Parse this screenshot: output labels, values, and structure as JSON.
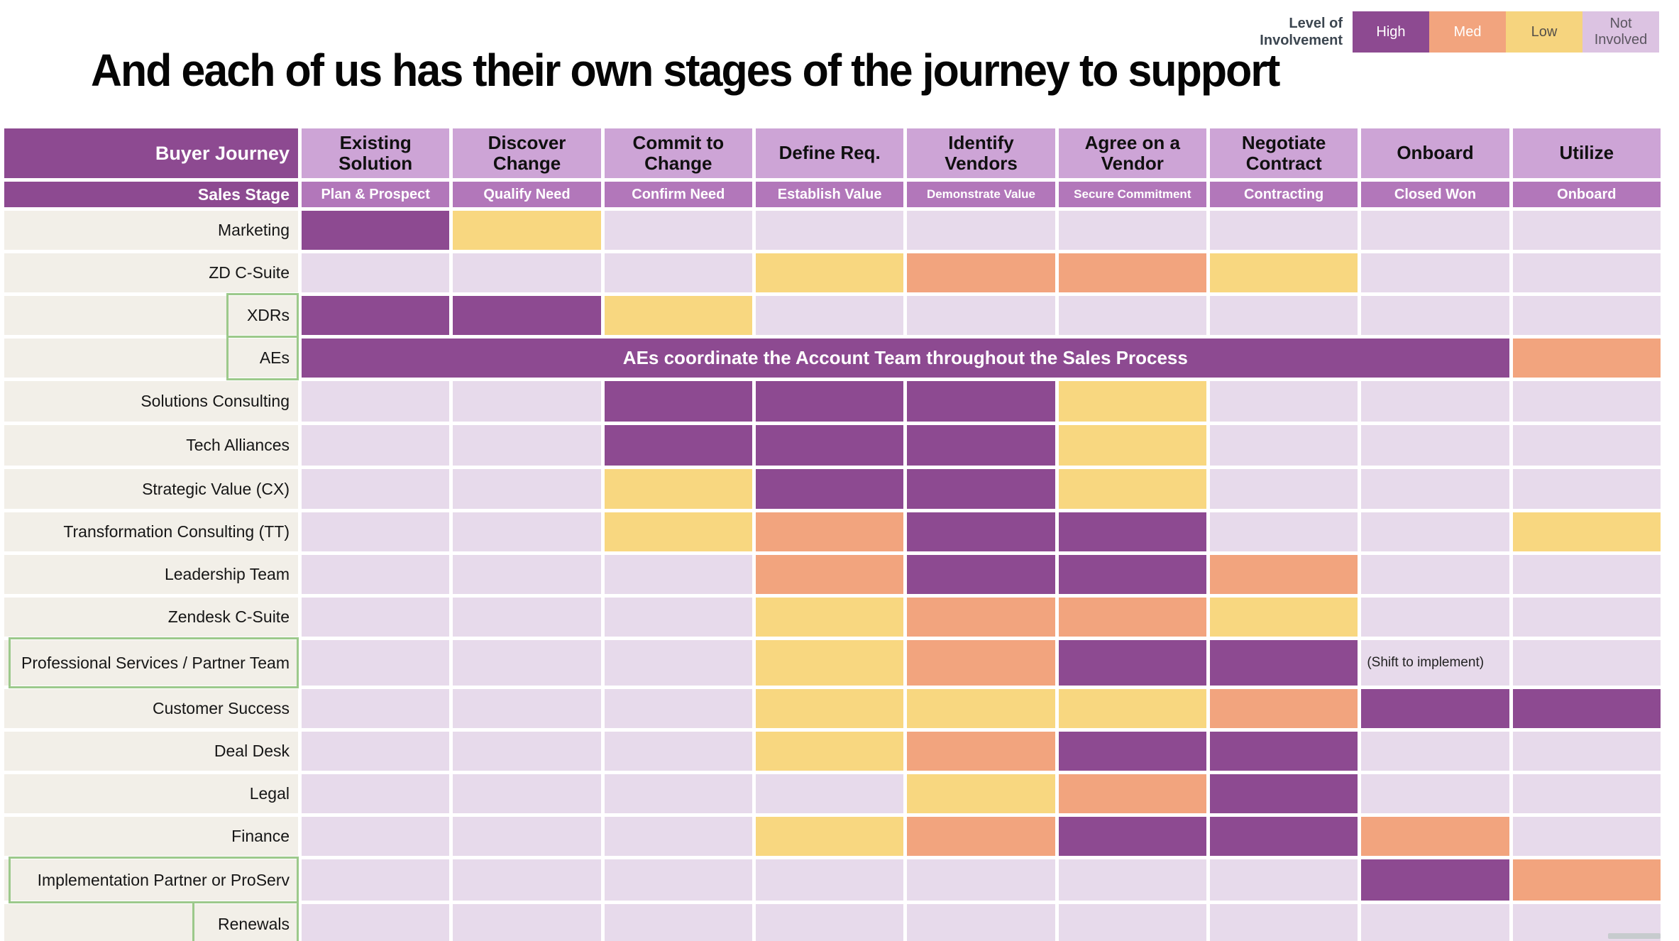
{
  "chart_data": {
    "type": "heatmap",
    "title": "And each of us has their own stages of the journey to support",
    "legend_title": "Level of Involvement",
    "legend_position": "top-right",
    "legend": [
      {
        "level": "High",
        "label": "High",
        "color": "#8d4a91",
        "text_color": "#ffffff"
      },
      {
        "level": "Med",
        "label": "Med",
        "color": "#f2a47e",
        "text_color": "#ffffff"
      },
      {
        "level": "Low",
        "label": "Low",
        "color": "#f6d47e",
        "text_color": "#55504a"
      },
      {
        "level": "Not Involved",
        "label": "Not Involved",
        "color": "#dcc3e2",
        "text_color": "#5b5560"
      }
    ],
    "corner": {
      "journey": "Buyer Journey",
      "stage": "Sales Stage"
    },
    "columns_journey": [
      "Existing Solution",
      "Discover Change",
      "Commit to Change",
      "Define Req.",
      "Identify Vendors",
      "Agree on a Vendor",
      "Negotiate Contract",
      "Onboard",
      "Utilize"
    ],
    "columns_sales_stage": [
      "Plan & Prospect",
      "Qualify Need",
      "Confirm Need",
      "Establish Value",
      "Demonstrate Value",
      "Secure Commitment",
      "Contracting",
      "Closed Won",
      "Onboard"
    ],
    "levels_key": {
      "H": "High",
      "M": "Med",
      "L": "Low",
      "N": "Not Involved"
    },
    "rows": [
      {
        "team": "Marketing",
        "cells": [
          "H",
          "L",
          "N",
          "N",
          "N",
          "N",
          "N",
          "N",
          "N"
        ]
      },
      {
        "team": "ZD C-Suite",
        "cells": [
          "N",
          "N",
          "N",
          "L",
          "M",
          "M",
          "L",
          "N",
          "N"
        ]
      },
      {
        "team": "XDRs",
        "highlight": "label",
        "cells": [
          "H",
          "H",
          "L",
          "N",
          "N",
          "N",
          "N",
          "N",
          "N"
        ]
      },
      {
        "team": "AEs",
        "highlight": "label",
        "merged": {
          "span": 8,
          "level": "H",
          "text": "AEs coordinate the Account Team throughout the Sales Process"
        },
        "tail_cells": [
          "M"
        ]
      },
      {
        "team": "Solutions Consulting",
        "cells": [
          "N",
          "N",
          "H",
          "H",
          "H",
          "L",
          "N",
          "N",
          "N"
        ]
      },
      {
        "team": "Tech Alliances",
        "cells": [
          "N",
          "N",
          "H",
          "H",
          "H",
          "L",
          "N",
          "N",
          "N"
        ]
      },
      {
        "team": "Strategic Value (CX)",
        "cells": [
          "N",
          "N",
          "L",
          "H",
          "H",
          "L",
          "N",
          "N",
          "N"
        ]
      },
      {
        "team": "Transformation Consulting (TT)",
        "cells": [
          "N",
          "N",
          "L",
          "M",
          "H",
          "H",
          "N",
          "N",
          "L"
        ]
      },
      {
        "team": "Leadership Team",
        "cells": [
          "N",
          "N",
          "N",
          "M",
          "H",
          "H",
          "M",
          "N",
          "N"
        ]
      },
      {
        "team": "Zendesk C-Suite",
        "cells": [
          "N",
          "N",
          "N",
          "L",
          "M",
          "M",
          "L",
          "N",
          "N"
        ]
      },
      {
        "team": "Professional Services / Partner Team",
        "highlight": "full",
        "cells": [
          "N",
          "N",
          "N",
          "L",
          "M",
          "H",
          "H",
          "N",
          "N"
        ],
        "cell_notes": {
          "7": "(Shift to implement)"
        }
      },
      {
        "team": "Customer Success",
        "cells": [
          "N",
          "N",
          "N",
          "L",
          "L",
          "L",
          "M",
          "H",
          "H"
        ]
      },
      {
        "team": "Deal Desk",
        "cells": [
          "N",
          "N",
          "N",
          "L",
          "M",
          "H",
          "H",
          "N",
          "N"
        ]
      },
      {
        "team": "Legal",
        "cells": [
          "N",
          "N",
          "N",
          "N",
          "L",
          "M",
          "H",
          "N",
          "N"
        ]
      },
      {
        "team": "Finance",
        "cells": [
          "N",
          "N",
          "N",
          "L",
          "M",
          "H",
          "H",
          "M",
          "N"
        ]
      },
      {
        "team": "Implementation Partner or ProServ",
        "highlight": "full",
        "cells": [
          "N",
          "N",
          "N",
          "N",
          "N",
          "N",
          "N",
          "H",
          "M"
        ]
      },
      {
        "team": "Renewals",
        "highlight": "label",
        "cells": [
          "N",
          "N",
          "N",
          "N",
          "N",
          "N",
          "N",
          "N",
          "N"
        ]
      }
    ]
  },
  "colors": {
    "levels": {
      "H": "#8d4a91",
      "M": "#f2a47e",
      "L": "#f8d780",
      "N": "#e7daeb"
    },
    "journey_header_bg": "#cda4d6",
    "stage_header_bg": "#b277ba",
    "corner_bg": "#8d4a91",
    "team_label_bg": "#f2efe8",
    "highlight_border": "#9cc98b",
    "title_color": "#050505",
    "legend_label_color": "#3c4650"
  }
}
